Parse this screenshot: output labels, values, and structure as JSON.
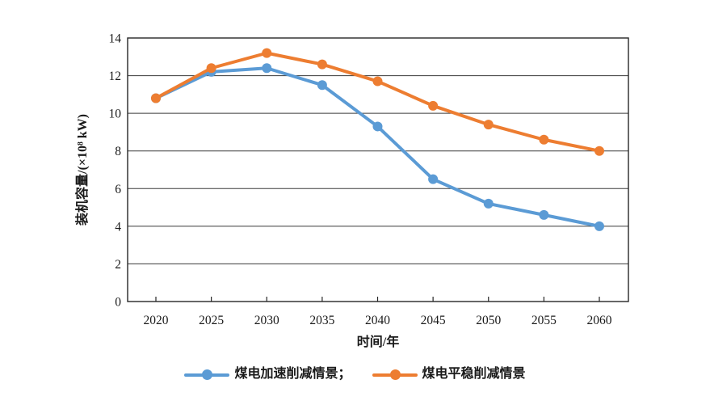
{
  "chart_data": {
    "type": "line",
    "title": "",
    "xlabel": "时间/年",
    "ylabel": "装机容量/(×10⁸ kW)",
    "categories": [
      "2020",
      "2025",
      "2030",
      "2035",
      "2040",
      "2045",
      "2050",
      "2055",
      "2060"
    ],
    "series": [
      {
        "name": "煤电加速削减情景",
        "color": "#5B9BD5",
        "values": [
          10.8,
          12.2,
          12.4,
          11.5,
          9.3,
          6.5,
          5.2,
          4.6,
          4.0
        ]
      },
      {
        "name": "煤电平稳削减情景",
        "color": "#ED7D31",
        "values": [
          10.8,
          12.4,
          13.2,
          12.6,
          11.7,
          10.4,
          9.4,
          8.6,
          8.0
        ]
      }
    ],
    "ylim": [
      0,
      14
    ],
    "ytick_step": 2,
    "grid": true,
    "legend_position": "bottom",
    "marker": "circle"
  },
  "legend": {
    "items": [
      {
        "label": "煤电加速削减情景；",
        "color": "#5B9BD5"
      },
      {
        "label": "煤电平稳削减情景",
        "color": "#ED7D31"
      }
    ]
  },
  "colors": {
    "axis": "#262626",
    "grid": "#3a3a3a",
    "text": "#1a1a1a",
    "background": "#ffffff"
  }
}
